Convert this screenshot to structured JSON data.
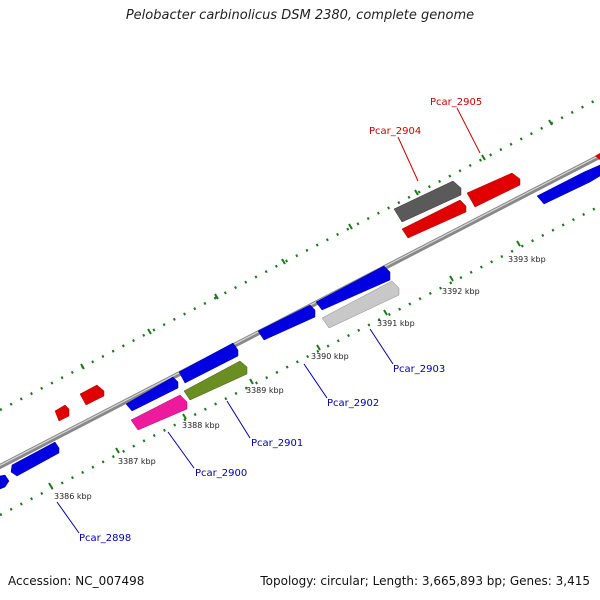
{
  "title": "Pelobacter carbinolicus DSM 2380, complete genome",
  "footer": {
    "accession": "Accession: NC_007498",
    "summary": "Topology: circular; Length: 3,665,893 bp; Genes: 3,415"
  },
  "colors": {
    "forward_gene": "#ff0000",
    "reverse_gene": "#0000ff",
    "tick": "#1a7a1a",
    "backbone": "#888888",
    "reverse_label": "#0000aa",
    "forward_label": "#cc0000"
  },
  "scale_labels": [
    "3386 kbp",
    "3387 kbp",
    "3388 kbp",
    "3389 kbp",
    "3390 kbp",
    "3391 kbp",
    "3392 kbp",
    "3393 kbp"
  ],
  "gene_labels": {
    "forward": [
      "Pcar_2904",
      "Pcar_2905"
    ],
    "reverse": [
      "Pcar_2898",
      "Pcar_2900",
      "Pcar_2901",
      "Pcar_2902",
      "Pcar_2903"
    ]
  }
}
